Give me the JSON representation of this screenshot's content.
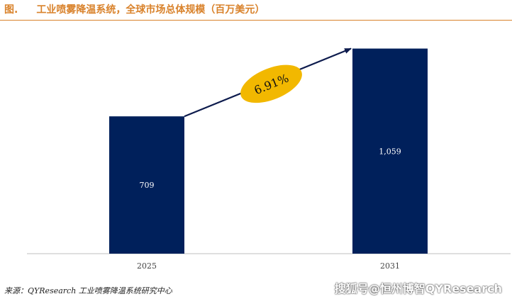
{
  "header": {
    "figure_label": "图.",
    "title": "工业喷雾降温系统，全球市场总体规模（百万美元）"
  },
  "chart_data": {
    "type": "bar",
    "categories": [
      "2025",
      "2031"
    ],
    "values": [
      709,
      1059
    ],
    "value_labels": [
      "709",
      "1,059"
    ],
    "annotation": "6.91%",
    "ylim": [
      0,
      1200
    ],
    "colors": {
      "bar": "#00205b",
      "badge": "#f2b800",
      "arrow": "#0d1b4d",
      "axis": "#bfbfbf"
    }
  },
  "footer": {
    "source": "来源：QYResearch 工业喷雾降温系统研究中心",
    "watermark": "搜狐号@恒州博智QYResearch"
  }
}
